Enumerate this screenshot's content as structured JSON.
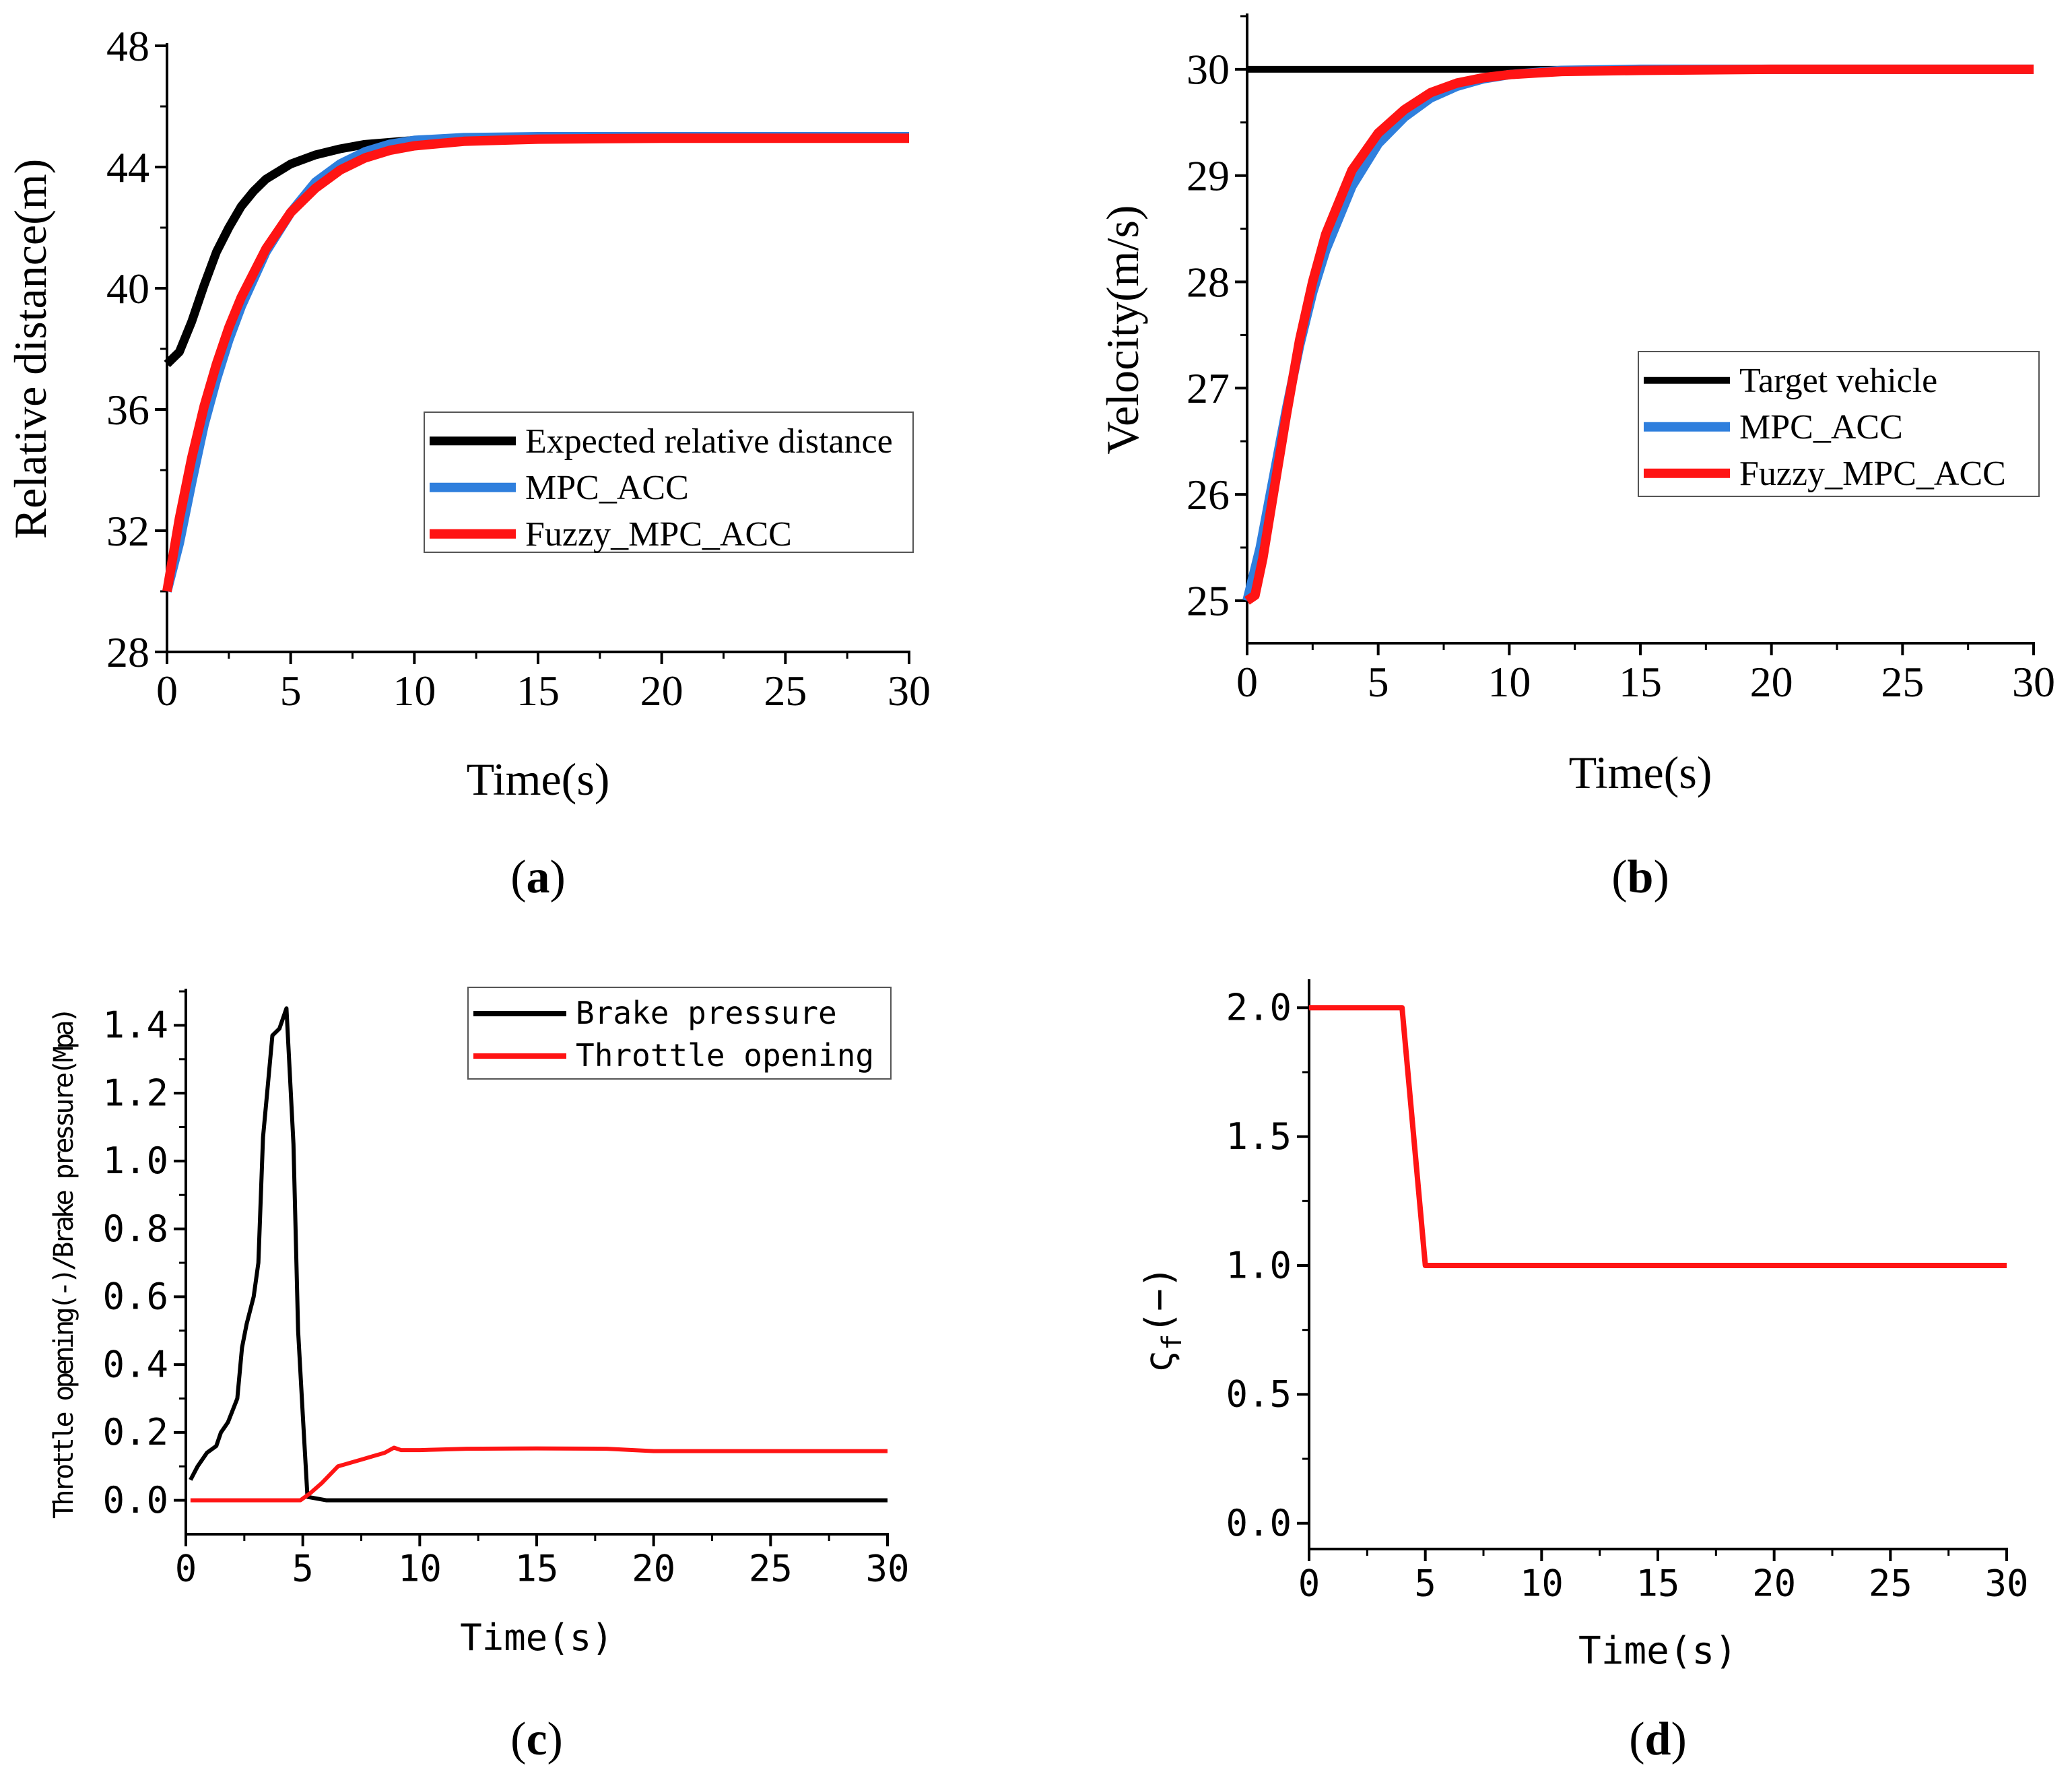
{
  "colors": {
    "black": "#000000",
    "blue": "#2f7fdd",
    "red": "#ff1414"
  },
  "chart_data": [
    {
      "id": "a",
      "type": "line",
      "panel_label": "(a)",
      "xlabel": "Time(s)",
      "ylabel": "Relative distance(m)",
      "xlim": [
        0,
        30
      ],
      "ylim": [
        28,
        48
      ],
      "xticks": [
        "0",
        "5",
        "10",
        "15",
        "20",
        "25",
        "30"
      ],
      "yticks": [
        "28",
        "32",
        "36",
        "40",
        "44",
        "48"
      ],
      "legend_position": "center-right",
      "series": [
        {
          "name": "Expected relative distance",
          "color": "#000000",
          "x": [
            0,
            0.5,
            1,
            1.5,
            2,
            2.5,
            3,
            3.5,
            4,
            5,
            6,
            7,
            8,
            10,
            12,
            15,
            20,
            30
          ],
          "y": [
            37.5,
            37.9,
            38.9,
            40.1,
            41.2,
            42.0,
            42.7,
            43.2,
            43.6,
            44.1,
            44.4,
            44.6,
            44.75,
            44.88,
            44.94,
            44.97,
            44.98,
            45.0
          ]
        },
        {
          "name": "MPC_ACC",
          "color": "#2f7fdd",
          "x": [
            0,
            0.5,
            1,
            1.5,
            2,
            2.5,
            3,
            4,
            5,
            6,
            7,
            8,
            9,
            10,
            12,
            15,
            20,
            30
          ],
          "y": [
            30.0,
            31.6,
            33.6,
            35.5,
            37.0,
            38.3,
            39.4,
            41.2,
            42.5,
            43.5,
            44.1,
            44.5,
            44.75,
            44.88,
            44.97,
            45.0,
            45.0,
            45.0
          ]
        },
        {
          "name": "Fuzzy_MPC_ACC",
          "color": "#ff1414",
          "x": [
            0,
            0.5,
            1,
            1.5,
            2,
            2.5,
            3,
            4,
            5,
            6,
            7,
            8,
            9,
            10,
            12,
            15,
            20,
            30
          ],
          "y": [
            30.0,
            32.4,
            34.4,
            36.1,
            37.5,
            38.7,
            39.7,
            41.3,
            42.5,
            43.3,
            43.9,
            44.3,
            44.55,
            44.7,
            44.85,
            44.92,
            44.95,
            44.95
          ]
        }
      ]
    },
    {
      "id": "b",
      "type": "line",
      "panel_label": "(b)",
      "xlabel": "Time(s)",
      "ylabel": "Velocity(m/s)",
      "xlim": [
        0,
        30
      ],
      "ylim": [
        24.6,
        30.5
      ],
      "xticks": [
        "0",
        "5",
        "10",
        "15",
        "20",
        "25",
        "30"
      ],
      "yticks": [
        "25",
        "26",
        "27",
        "28",
        "29",
        "30"
      ],
      "legend_position": "center-right",
      "series": [
        {
          "name": "Target vehicle",
          "color": "#000000",
          "x": [
            0,
            30
          ],
          "y": [
            30,
            30
          ]
        },
        {
          "name": "MPC_ACC",
          "color": "#2f7fdd",
          "x": [
            0,
            0.5,
            1,
            1.5,
            2,
            2.5,
            3,
            4,
            5,
            6,
            7,
            8,
            9,
            10,
            12,
            15,
            20,
            30
          ],
          "y": [
            25.0,
            25.5,
            26.15,
            26.8,
            27.4,
            27.9,
            28.3,
            28.9,
            29.3,
            29.55,
            29.73,
            29.84,
            29.91,
            29.95,
            29.99,
            30.0,
            30.0,
            30.0
          ]
        },
        {
          "name": "Fuzzy_MPC_ACC",
          "color": "#ff1414",
          "x": [
            0,
            0.3,
            0.6,
            1,
            1.5,
            2,
            2.5,
            3,
            4,
            5,
            6,
            7,
            8,
            9,
            10,
            12,
            15,
            20,
            30
          ],
          "y": [
            25.0,
            25.05,
            25.4,
            26.0,
            26.75,
            27.45,
            28.0,
            28.45,
            29.05,
            29.4,
            29.62,
            29.78,
            29.87,
            29.92,
            29.95,
            29.98,
            29.99,
            30.0,
            30.0
          ]
        }
      ]
    },
    {
      "id": "c",
      "type": "line",
      "panel_label": "(c)",
      "xlabel": "Time(s)",
      "ylabel": "Throttle opening(-)/Brake pressure(Mpa)",
      "xlim": [
        0,
        30
      ],
      "ylim": [
        -0.1,
        1.5
      ],
      "xticks": [
        "0",
        "5",
        "10",
        "15",
        "20",
        "25",
        "30"
      ],
      "yticks": [
        "0.0",
        "0.2",
        "0.4",
        "0.6",
        "0.8",
        "1.0",
        "1.2",
        "1.4"
      ],
      "legend_position": "top-right",
      "series": [
        {
          "name": "Brake pressure",
          "color": "#000000",
          "x": [
            0.2,
            0.5,
            0.9,
            1.3,
            1.5,
            1.8,
            2.2,
            2.4,
            2.6,
            2.9,
            3.1,
            3.3,
            3.5,
            3.7,
            4.0,
            4.3,
            4.6,
            4.8,
            5.0,
            5.2,
            6,
            10,
            20,
            30
          ],
          "y": [
            0.06,
            0.1,
            0.14,
            0.16,
            0.2,
            0.23,
            0.3,
            0.45,
            0.52,
            0.6,
            0.7,
            1.07,
            1.22,
            1.37,
            1.39,
            1.45,
            1.05,
            0.5,
            0.25,
            0.01,
            0,
            0,
            0,
            0
          ]
        },
        {
          "name": "Throttle opening",
          "color": "#ff1414",
          "x": [
            0.2,
            2,
            4,
            4.9,
            5.3,
            5.8,
            6.5,
            7,
            7.5,
            8,
            8.5,
            8.9,
            9.2,
            10,
            11,
            12,
            15,
            18,
            20,
            25,
            30
          ],
          "y": [
            0,
            0,
            0,
            0,
            0.02,
            0.05,
            0.1,
            0.11,
            0.12,
            0.13,
            0.14,
            0.155,
            0.148,
            0.148,
            0.15,
            0.152,
            0.153,
            0.152,
            0.145,
            0.145,
            0.145
          ]
        }
      ]
    },
    {
      "id": "d",
      "type": "line",
      "panel_label": "(d)",
      "xlabel": "Time(s)",
      "ylabel_base": "ς",
      "ylabel_sub": "f",
      "ylabel_tail": "(−)",
      "xlim": [
        0,
        30
      ],
      "ylim": [
        -0.1,
        2.1
      ],
      "xticks": [
        "0",
        "5",
        "10",
        "15",
        "20",
        "25",
        "30"
      ],
      "yticks": [
        "0.0",
        "0.5",
        "1.0",
        "1.5",
        "2.0"
      ],
      "series": [
        {
          "name": "ςf",
          "color": "#ff1414",
          "x": [
            0,
            4,
            5,
            30
          ],
          "y": [
            2.0,
            2.0,
            1.0,
            1.0
          ]
        }
      ]
    }
  ]
}
